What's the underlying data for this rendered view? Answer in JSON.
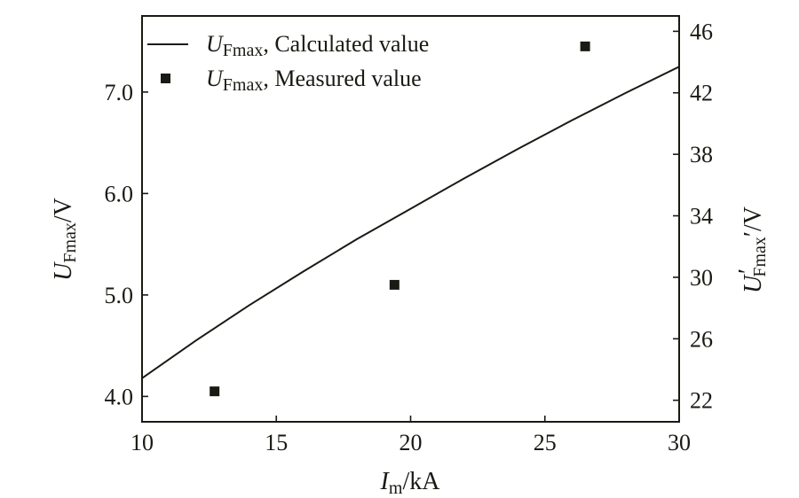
{
  "chart_data": {
    "type": "line",
    "x_axis": {
      "label": {
        "var": "I",
        "sub": "m",
        "unit": "/kA"
      },
      "range": [
        10,
        30
      ],
      "ticks": [
        10,
        15,
        20,
        25,
        30
      ]
    },
    "y_axis_left": {
      "label": {
        "var": "U",
        "sub": "Fmax",
        "unit": "/V"
      },
      "range": [
        3.75,
        7.75
      ],
      "ticks": [
        "4.0",
        "5.0",
        "6.0",
        "7.0"
      ]
    },
    "y_axis_right": {
      "label": {
        "var": "U",
        "prime": "′",
        "sub": "Fmax",
        "unit": "/V"
      },
      "range": [
        20.6,
        47
      ],
      "ticks": [
        22,
        26,
        30,
        34,
        38,
        42,
        46
      ]
    },
    "series": [
      {
        "name": "Calculated value",
        "legend_var": "U",
        "legend_sub": "Fmax",
        "style": "line",
        "axis": "left",
        "x": [
          10,
          12,
          14,
          16,
          18,
          20,
          22,
          24,
          26,
          28,
          30
        ],
        "y": [
          4.18,
          4.55,
          4.9,
          5.23,
          5.55,
          5.85,
          6.15,
          6.44,
          6.72,
          6.99,
          7.25
        ]
      },
      {
        "name": "Measured value",
        "legend_var": "U",
        "legend_sub": "Fmax",
        "style": "marker",
        "axis": "left",
        "x": [
          12.7,
          19.4,
          26.5
        ],
        "y": [
          4.05,
          5.1,
          7.45
        ]
      }
    ],
    "legend_position": "top-left",
    "grid": false
  }
}
